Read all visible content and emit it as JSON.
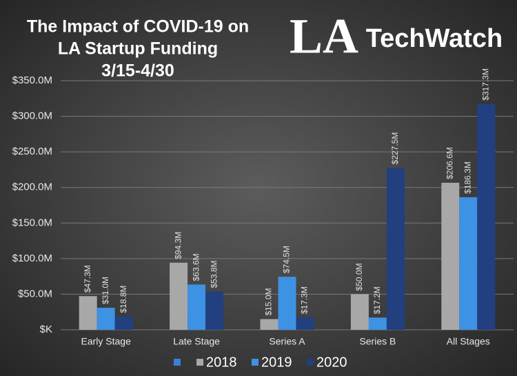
{
  "chart_data": {
    "type": "bar",
    "title": [
      "The Impact of COVID-19 on",
      "LA Startup Funding",
      "3/15-4/30"
    ],
    "logo": {
      "mark": "LA",
      "name": "TechWatch"
    },
    "categories": [
      "Early Stage",
      "Late Stage",
      "Series A",
      "Series B",
      "All Stages"
    ],
    "series": [
      {
        "name": "2018",
        "color": "#a8a8a8",
        "values": [
          47.3,
          94.3,
          15.0,
          50.0,
          206.6
        ],
        "value_labels": [
          "$47.3M",
          "$94.3M",
          "$15.0M",
          "$50.0M",
          "$206.6M"
        ]
      },
      {
        "name": "2019",
        "color": "#3d92e3",
        "values": [
          31.0,
          63.6,
          74.5,
          17.2,
          186.3
        ],
        "value_labels": [
          "$31.0M",
          "$63.6M",
          "$74.5M",
          "$17.2M",
          "$186.3M"
        ]
      },
      {
        "name": "2020",
        "color": "#223f80",
        "values": [
          18.8,
          53.8,
          17.3,
          227.5,
          317.3
        ],
        "value_labels": [
          "$18.8M",
          "$53.8M",
          "$17.3M",
          "$227.5M",
          "$317.3M"
        ]
      }
    ],
    "ylim": [
      0,
      350
    ],
    "yticks": [
      {
        "value": 0,
        "label": "$K"
      },
      {
        "value": 50,
        "label": "$50.0M"
      },
      {
        "value": 100,
        "label": "$100.0M"
      },
      {
        "value": 150,
        "label": "$150.0M"
      },
      {
        "value": 200,
        "label": "$200.0M"
      },
      {
        "value": 250,
        "label": "$250.0M"
      },
      {
        "value": 300,
        "label": "$300.0M"
      },
      {
        "value": 350,
        "label": "$350.0M"
      }
    ],
    "grid": true
  }
}
